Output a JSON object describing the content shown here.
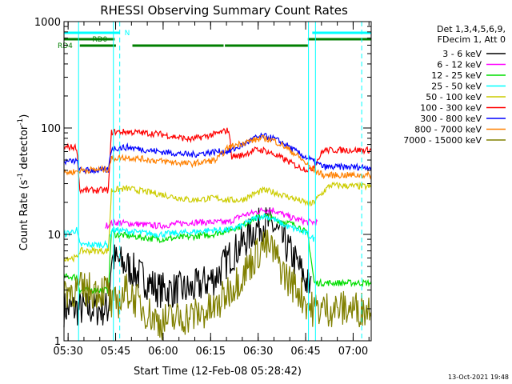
{
  "chart_data": {
    "type": "line",
    "title": "RHESSI Observing Summary Count Rates",
    "xlabel": "Start Time (12-Feb-08 05:28:42)",
    "ylabel_main": "Count Rate (s",
    "ylabel_sup1": "-1",
    "ylabel_mid": " detector",
    "ylabel_sup2": "-1",
    "ylabel_end": ")",
    "y_scale": "log",
    "ylim": [
      1,
      1000
    ],
    "xlim_minutes": [
      0,
      97
    ],
    "y_ticks": [
      {
        "value": 1,
        "label": "1"
      },
      {
        "value": 10,
        "label": "10"
      },
      {
        "value": 100,
        "label": "100"
      },
      {
        "value": 1000,
        "label": "1000"
      }
    ],
    "x_ticks": [
      {
        "minute": 1.3,
        "label": "05:30"
      },
      {
        "minute": 16.3,
        "label": "05:45"
      },
      {
        "minute": 31.3,
        "label": "06:00"
      },
      {
        "minute": 46.3,
        "label": "06:15"
      },
      {
        "minute": 61.3,
        "label": "06:30"
      },
      {
        "minute": 76.3,
        "label": "06:45"
      },
      {
        "minute": 91.3,
        "label": "07:00"
      }
    ],
    "legend_header": [
      "Det 1,3,4,5,6,9,",
      "FDecim 1, Att 0"
    ],
    "timestamp": "13-Oct-2021 19:48",
    "flags": [
      {
        "label": "N",
        "color": "#00ffff",
        "segments": [
          [
            0,
            17.6
          ],
          [
            78.4,
            97
          ]
        ],
        "level": 1
      },
      {
        "label": "RD0",
        "color": "#007f00",
        "segments": [
          [
            0,
            16
          ],
          [
            77,
            97
          ]
        ],
        "level": 2
      },
      {
        "label": "RD4",
        "color": "#007f00",
        "segments": [
          [
            5,
            16.4
          ],
          [
            21.6,
            50.4
          ],
          [
            50.8,
            77
          ]
        ],
        "level": 3
      }
    ],
    "saa_dashes_minutes": [
      17.6,
      94
    ],
    "eclipse_lines_minutes": [
      4.6,
      15.6,
      77.2,
      79.4
    ],
    "series": [
      {
        "name": "3 - 6 keV",
        "color": "#000000",
        "points": [
          [
            0,
            2
          ],
          [
            14,
            2
          ],
          [
            15,
            6
          ],
          [
            20,
            5
          ],
          [
            30,
            3
          ],
          [
            40,
            3
          ],
          [
            48,
            4
          ],
          [
            52,
            6
          ],
          [
            56,
            8
          ],
          [
            60,
            11
          ],
          [
            63,
            13
          ],
          [
            66,
            12
          ],
          [
            70,
            8
          ],
          [
            74,
            5
          ],
          [
            78,
            3
          ]
        ]
      },
      {
        "name": "6 - 12 keV",
        "color": "#ff00ff",
        "points": [
          [
            13,
            12
          ],
          [
            16,
            13
          ],
          [
            30,
            12
          ],
          [
            40,
            13
          ],
          [
            47,
            13
          ],
          [
            52,
            13
          ],
          [
            56,
            15
          ],
          [
            60,
            16
          ],
          [
            63,
            17
          ],
          [
            66,
            17
          ],
          [
            70,
            15
          ],
          [
            73,
            14
          ],
          [
            77,
            13
          ],
          [
            80,
            13
          ]
        ]
      },
      {
        "name": "12 - 25 keV",
        "color": "#00dd00",
        "points": [
          [
            0,
            4
          ],
          [
            4,
            4
          ],
          [
            5,
            3
          ],
          [
            14,
            3
          ],
          [
            15,
            11
          ],
          [
            16,
            10
          ],
          [
            30,
            9
          ],
          [
            40,
            9.5
          ],
          [
            47,
            10
          ],
          [
            52,
            11
          ],
          [
            56,
            12
          ],
          [
            60,
            14
          ],
          [
            63,
            15
          ],
          [
            66,
            14
          ],
          [
            70,
            13
          ],
          [
            74,
            12
          ],
          [
            77,
            10
          ],
          [
            79,
            3.5
          ],
          [
            97,
            3.5
          ]
        ]
      },
      {
        "name": "25 - 50 keV",
        "color": "#00ffff",
        "points": [
          [
            0,
            10
          ],
          [
            4,
            11
          ],
          [
            5,
            8
          ],
          [
            14,
            8
          ],
          [
            15,
            11
          ],
          [
            16,
            11
          ],
          [
            30,
            10
          ],
          [
            40,
            10.5
          ],
          [
            47,
            11
          ],
          [
            52,
            11
          ],
          [
            56,
            12
          ],
          [
            60,
            14
          ],
          [
            63,
            15
          ],
          [
            66,
            14
          ],
          [
            70,
            12
          ],
          [
            74,
            11
          ],
          [
            77,
            10
          ],
          [
            79,
            9
          ]
        ]
      },
      {
        "name": "50 - 100 keV",
        "color": "#cccc00",
        "points": [
          [
            0,
            6
          ],
          [
            4,
            6
          ],
          [
            5,
            7
          ],
          [
            14,
            7
          ],
          [
            15,
            26
          ],
          [
            20,
            27
          ],
          [
            30,
            24
          ],
          [
            40,
            21
          ],
          [
            48,
            22
          ],
          [
            52,
            21
          ],
          [
            56,
            21
          ],
          [
            60,
            24
          ],
          [
            63,
            26
          ],
          [
            66,
            25
          ],
          [
            70,
            23
          ],
          [
            74,
            21
          ],
          [
            78,
            19
          ],
          [
            84,
            29
          ],
          [
            97,
            28
          ]
        ]
      },
      {
        "name": "100 - 300 keV",
        "color": "#ff0000",
        "points": [
          [
            0,
            66
          ],
          [
            4,
            66
          ],
          [
            5,
            26
          ],
          [
            14,
            26
          ],
          [
            15,
            92
          ],
          [
            20,
            92
          ],
          [
            30,
            88
          ],
          [
            40,
            78
          ],
          [
            48,
            88
          ],
          [
            52,
            96
          ],
          [
            53,
            54
          ],
          [
            56,
            55
          ],
          [
            60,
            62
          ],
          [
            63,
            62
          ],
          [
            66,
            57
          ],
          [
            70,
            50
          ],
          [
            74,
            43
          ],
          [
            78,
            40
          ],
          [
            82,
            62
          ],
          [
            97,
            62
          ]
        ]
      },
      {
        "name": "300 - 800 keV",
        "color": "#0000ff",
        "points": [
          [
            0,
            48
          ],
          [
            4,
            49
          ],
          [
            5,
            40
          ],
          [
            14,
            40
          ],
          [
            15,
            64
          ],
          [
            20,
            66
          ],
          [
            30,
            60
          ],
          [
            40,
            56
          ],
          [
            48,
            60
          ],
          [
            52,
            60
          ],
          [
            56,
            68
          ],
          [
            60,
            80
          ],
          [
            63,
            84
          ],
          [
            66,
            80
          ],
          [
            70,
            70
          ],
          [
            74,
            58
          ],
          [
            78,
            50
          ],
          [
            82,
            43
          ],
          [
            97,
            43
          ]
        ]
      },
      {
        "name": "800 - 7000 keV",
        "color": "#ff8000",
        "points": [
          [
            0,
            38
          ],
          [
            4,
            39
          ],
          [
            5,
            40
          ],
          [
            14,
            41
          ],
          [
            15,
            52
          ],
          [
            20,
            53
          ],
          [
            30,
            49
          ],
          [
            40,
            46
          ],
          [
            48,
            50
          ],
          [
            52,
            66
          ],
          [
            56,
            72
          ],
          [
            60,
            77
          ],
          [
            63,
            80
          ],
          [
            66,
            77
          ],
          [
            70,
            66
          ],
          [
            74,
            54
          ],
          [
            78,
            42
          ],
          [
            82,
            36
          ],
          [
            97,
            36
          ]
        ]
      },
      {
        "name": "7000 - 15000 keV",
        "color": "#808000",
        "points": [
          [
            0,
            3
          ],
          [
            14,
            3
          ],
          [
            15,
            2
          ],
          [
            20,
            3
          ],
          [
            25,
            2
          ],
          [
            30,
            1.5
          ],
          [
            40,
            1.7
          ],
          [
            48,
            2
          ],
          [
            52,
            3
          ],
          [
            56,
            4
          ],
          [
            60,
            6
          ],
          [
            63,
            8
          ],
          [
            66,
            7
          ],
          [
            70,
            4
          ],
          [
            74,
            3
          ],
          [
            78,
            2
          ],
          [
            97,
            2
          ]
        ]
      }
    ]
  }
}
